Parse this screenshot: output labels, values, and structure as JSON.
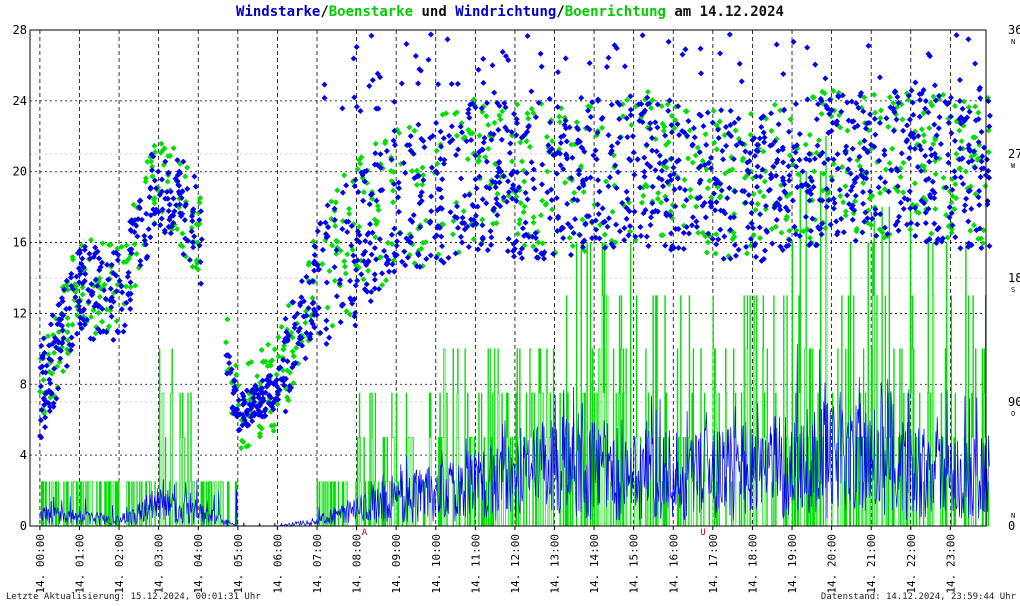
{
  "title": {
    "part1": "Windstarke",
    "sep1": "/",
    "part2": "Boenstarke",
    "part3": " und ",
    "part4": "Windrichtung",
    "sep2": "/",
    "part5": "Boenrichtung",
    "part6": " am 14.12.2024"
  },
  "footer": {
    "left": "Letzte Aktualisierung: 15.12.2024, 00:01:31 Uhr",
    "right": "Datenstand: 14.12.2024, 23:59:44 Uhr"
  },
  "colors": {
    "wind": "#0000ee",
    "gust": "#00dd00",
    "grid": "#000000",
    "marker": "#cc0000"
  },
  "chart_data": {
    "type": "line",
    "x_ticks": [
      "14. 00:00",
      "14. 01:00",
      "14. 02:00",
      "14. 03:00",
      "14. 04:00",
      "14. 05:00",
      "14. 06:00",
      "14. 07:00",
      "14. 08:00",
      "14. 09:00",
      "14. 10:00",
      "14. 11:00",
      "14. 12:00",
      "14. 13:00",
      "14. 14:00",
      "14. 15:00",
      "14. 16:00",
      "14. 17:00",
      "14. 18:00",
      "14. 19:00",
      "14. 20:00",
      "14. 21:00",
      "14. 22:00",
      "14. 23:00"
    ],
    "ylim_left": [
      0,
      28
    ],
    "yticks_left": [
      "0",
      "4",
      "8",
      "12",
      "16",
      "20",
      "24",
      "28"
    ],
    "ylim_right": [
      0,
      360
    ],
    "yticks_right": [
      "0",
      "90",
      "180",
      "270",
      "360"
    ],
    "compass_labels": [
      "N",
      "O",
      "S",
      "W",
      "N"
    ],
    "markers": [
      {
        "label": "A",
        "hour": 8.2
      },
      {
        "label": "U",
        "hour": 16.75
      }
    ],
    "series": [
      {
        "name": "Windstarke",
        "color": "#0000ee",
        "hourly_mean": [
          0.6,
          0.5,
          0.3,
          1.2,
          0.8,
          0.0,
          0.0,
          0.3,
          0.9,
          1.4,
          2.0,
          2.3,
          2.5,
          3.4,
          3.2,
          3.0,
          3.1,
          2.9,
          3.0,
          3.6,
          3.8,
          3.5,
          3.2,
          2.8
        ],
        "hourly_max": [
          2.0,
          1.8,
          1.2,
          3.0,
          2.2,
          0.2,
          0.2,
          1.2,
          3.0,
          4.0,
          5.0,
          6.0,
          6.2,
          8.0,
          7.5,
          7.6,
          7.4,
          6.8,
          7.2,
          10.5,
          8.8,
          8.6,
          8.2,
          7.8
        ]
      },
      {
        "name": "Boenstarke",
        "color": "#00dd00",
        "hourly_max": [
          2.5,
          2.5,
          2.5,
          10.0,
          2.5,
          0.0,
          0.0,
          2.5,
          7.5,
          7.5,
          10.0,
          10.0,
          10.5,
          16.0,
          16.0,
          15.0,
          15.0,
          15.0,
          14.0,
          22.0,
          17.0,
          18.0,
          16.5,
          16.0
        ]
      },
      {
        "name": "Windrichtung",
        "color": "#0000ee",
        "unit": "deg",
        "hourly_mean": [
          95,
          170,
          165,
          250,
          220,
          80,
          100,
          175,
          200,
          235,
          240,
          255,
          250,
          245,
          255,
          260,
          255,
          250,
          245,
          255,
          260,
          260,
          265,
          255
        ]
      },
      {
        "name": "Boenrichtung",
        "color": "#00dd00",
        "unit": "deg",
        "hourly_mean": [
          90,
          175,
          170,
          255,
          215,
          85,
          105,
          180,
          210,
          240,
          245,
          258,
          255,
          250,
          255,
          262,
          258,
          252,
          248,
          258,
          262,
          262,
          266,
          258
        ]
      }
    ]
  }
}
